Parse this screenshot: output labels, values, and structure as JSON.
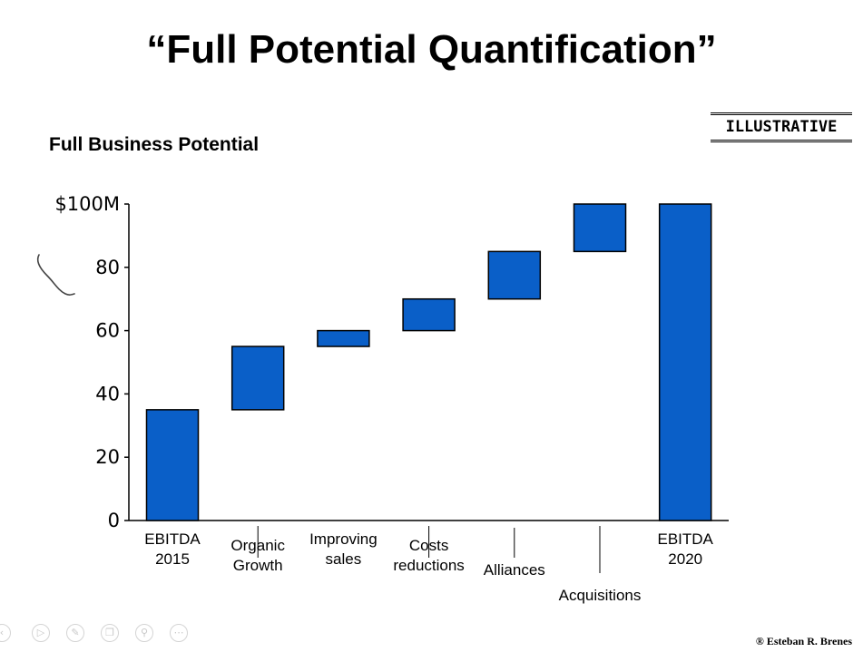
{
  "slide": {
    "title": "“Full Potential Quantification”",
    "illustrative_label": "ILLUSTRATIVE",
    "credit": "® Esteban R. Brenes"
  },
  "toolbar": {
    "icons": [
      "back-arrow-icon",
      "play-icon",
      "pen-icon",
      "copy-icon",
      "zoom-icon",
      "more-icon"
    ]
  },
  "chart_data": {
    "type": "waterfall",
    "title": "Full Business Potential",
    "ylim": [
      0,
      100
    ],
    "yticks": [
      {
        "value": 0,
        "label": "0"
      },
      {
        "value": 20,
        "label": "20"
      },
      {
        "value": 40,
        "label": "40"
      },
      {
        "value": 60,
        "label": "60"
      },
      {
        "value": 80,
        "label": "80"
      },
      {
        "value": 100,
        "label": "$100M"
      }
    ],
    "bar_color": "#0a5fc8",
    "bars": [
      {
        "label": [
          "EBITDA",
          "2015"
        ],
        "start": 0,
        "end": 35,
        "kind": "total",
        "label_row": 0
      },
      {
        "label": [
          "Organic",
          "Growth"
        ],
        "start": 35,
        "end": 55,
        "kind": "delta",
        "label_row": 2
      },
      {
        "label": [
          "Improving",
          "sales"
        ],
        "start": 55,
        "end": 60,
        "kind": "delta",
        "label_row": 0
      },
      {
        "label": [
          "Costs",
          "reductions"
        ],
        "start": 60,
        "end": 70,
        "kind": "delta",
        "label_row": 2
      },
      {
        "label": [
          "Alliances"
        ],
        "start": 70,
        "end": 85,
        "kind": "delta",
        "label_row": 1
      },
      {
        "label": [
          "Acquisitions"
        ],
        "start": 85,
        "end": 100,
        "kind": "delta",
        "label_row": 3
      },
      {
        "label": [
          "EBITDA",
          "2020"
        ],
        "start": 0,
        "end": 100,
        "kind": "total",
        "label_row": 0
      }
    ]
  }
}
